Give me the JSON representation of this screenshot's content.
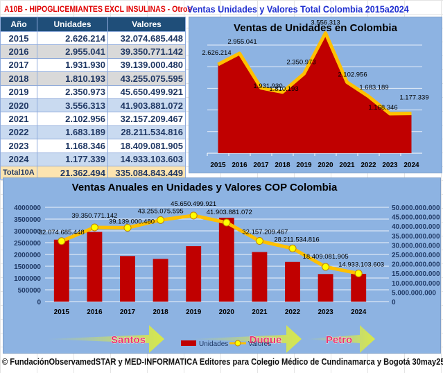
{
  "header": {
    "left_title": "A10B - HIPOGLICEMIANTES EXCL INSULINAS - Otros",
    "right_title": "Ventas Unidades y Valores Total Colombia 2015a2024"
  },
  "table": {
    "columns": [
      "Año",
      "Unidades",
      "Valores"
    ],
    "rows": [
      {
        "year": "2015",
        "units": "2.626.214",
        "values": "32.074.685.448"
      },
      {
        "year": "2016",
        "units": "2.955.041",
        "values": "39.350.771.142"
      },
      {
        "year": "2017",
        "units": "1.931.930",
        "values": "39.139.000.480"
      },
      {
        "year": "2018",
        "units": "1.810.193",
        "values": "43.255.075.595"
      },
      {
        "year": "2019",
        "units": "2.350.973",
        "values": "45.650.499.921"
      },
      {
        "year": "2020",
        "units": "3.556.313",
        "values": "41.903.881.072"
      },
      {
        "year": "2021",
        "units": "2.102.956",
        "values": "32.157.209.467"
      },
      {
        "year": "2022",
        "units": "1.683.189",
        "values": "28.211.534.816"
      },
      {
        "year": "2023",
        "units": "1.168.346",
        "values": "18.409.081.905"
      },
      {
        "year": "2024",
        "units": "1.177.339",
        "values": "14.933.103.603"
      }
    ],
    "total": {
      "label": "Total10A",
      "units": "21.362.494",
      "values": "335.084.843.449"
    }
  },
  "colors": {
    "chart_bg": "#8db3e2",
    "bar_red": "#c00000",
    "line_gold": "#ffc000",
    "marker_yellow": "#ffff00",
    "arrow_green": "#d8e84a",
    "president_pink": "#e8336e"
  },
  "chart_data": [
    {
      "type": "area",
      "title": "Ventas de Unidades en Colombia",
      "categories": [
        "2015",
        "2016",
        "2017",
        "2018",
        "2019",
        "2020",
        "2021",
        "2022",
        "2023",
        "2024"
      ],
      "values": [
        2626214,
        2955041,
        1931930,
        1810193,
        2350973,
        3556313,
        2102956,
        1683189,
        1168346,
        1177339
      ],
      "data_labels": [
        "2.626.214",
        "2.955.041",
        "1.931.930",
        "1.810.193",
        "2.350.973",
        "3.556.313",
        "2.102.956",
        "1.683.189",
        "1.168.346",
        "1.177.339"
      ],
      "ylim": [
        0,
        4000000
      ],
      "grid": true,
      "xlabel": "",
      "ylabel": ""
    },
    {
      "type": "bar",
      "title": "Ventas Anuales en Unidades y Valores COP Colombia",
      "categories": [
        "2015",
        "2016",
        "2017",
        "2018",
        "2019",
        "2020",
        "2021",
        "2022",
        "2023",
        "2024"
      ],
      "series": [
        {
          "name": "Unidades",
          "type": "bar",
          "axis": "left",
          "values": [
            2626214,
            2955041,
            1931930,
            1810193,
            2350973,
            3556313,
            2102956,
            1683189,
            1168346,
            1177339
          ]
        },
        {
          "name": "Valores",
          "type": "line",
          "axis": "right",
          "values": [
            32074685448,
            39350771142,
            39139000480,
            43255075595,
            45650499921,
            41903881072,
            32157209467,
            28211534816,
            18409081905,
            14933103603
          ],
          "data_labels": [
            "32.074.685.448",
            "39.350.771.142",
            "39.139.000.480",
            "43.255.075.595",
            "45.650.499.921",
            "41.903.881.072",
            "32.157.209.467",
            "28.211.534.816",
            "18.409.081.905",
            "14.933.103.603"
          ]
        }
      ],
      "left_axis": {
        "ylim": [
          0,
          4000000
        ],
        "ticks": [
          "0",
          "500000",
          "1000000",
          "1500000",
          "2000000",
          "2500000",
          "3000000",
          "3500000",
          "4000000"
        ]
      },
      "right_axis": {
        "ylim": [
          0,
          50000000000
        ],
        "ticks": [
          "0",
          "5.000.000.000",
          "10.000.000.000",
          "15.000.000.000",
          "20.000.000.000",
          "25.000.000.000",
          "30.000.000.000",
          "35.000.000.000",
          "40.000.000.000",
          "45.000.000.000",
          "50.000.000.000"
        ]
      },
      "legend": {
        "position": "bottom",
        "entries": [
          "Unidades",
          "Valores"
        ]
      },
      "annotations": [
        {
          "text": "Santos",
          "span": [
            "2015",
            "2018"
          ]
        },
        {
          "text": "Duque",
          "span": [
            "2018",
            "2022"
          ]
        },
        {
          "text": "Petro",
          "span": [
            "2022",
            "2024"
          ]
        }
      ],
      "grid": true
    }
  ],
  "footer": "© FundaciónObservamedSTAR y MED-INFORMATICA Editores para Colegio Médico de Cundinamarca y Bogotá 30may25"
}
